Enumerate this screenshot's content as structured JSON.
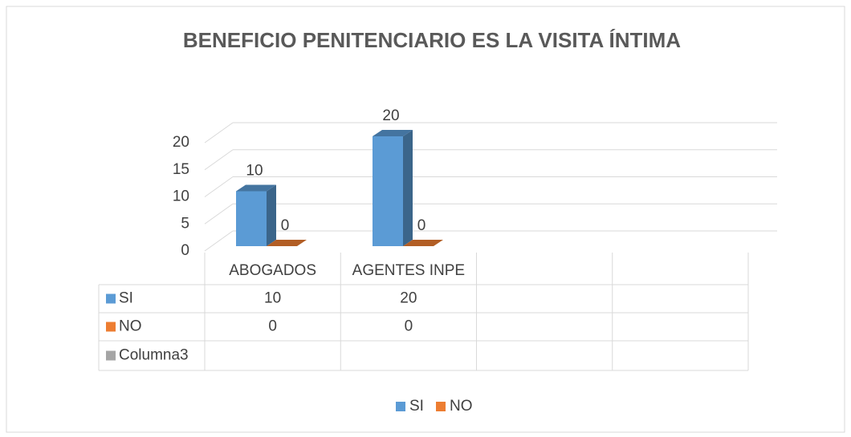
{
  "chart_data": {
    "type": "bar3d",
    "title": "BENEFICIO PENITENCIARIO ES LA VISITA ÍNTIMA",
    "categories": [
      "ABOGADOS",
      "AGENTES INPE",
      null,
      null
    ],
    "series": [
      {
        "name": "SI",
        "color": "#5b9bd5",
        "values": [
          10,
          20,
          null,
          null
        ]
      },
      {
        "name": "NO",
        "color": "#ed7d31",
        "values": [
          0,
          0,
          null,
          null
        ]
      },
      {
        "name": "Columna3",
        "color": "#a5a5a5",
        "values": [
          null,
          null,
          null,
          null
        ]
      }
    ],
    "legend_series": [
      0,
      1
    ],
    "ylim": [
      0,
      20
    ],
    "yticks": [
      0,
      5,
      10,
      15,
      20
    ],
    "grid": true,
    "data_table": true
  }
}
